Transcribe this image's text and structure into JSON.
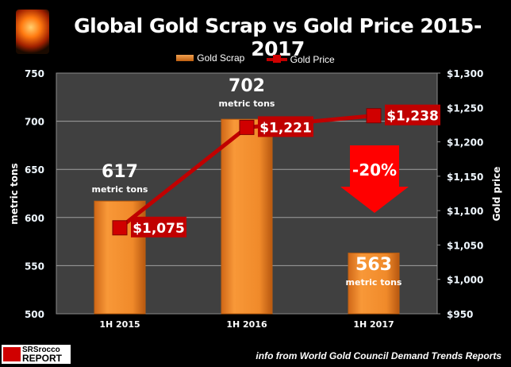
{
  "chart_data": {
    "type": "bar+line",
    "title": "Global Gold Scrap vs Gold Price 2015-2017",
    "categories": [
      "1H 2015",
      "1H 2016",
      "1H 2017"
    ],
    "series": [
      {
        "name": "Gold Scrap",
        "type": "bar",
        "axis": "left",
        "values": [
          617,
          702,
          563
        ],
        "data_labels": [
          "617",
          "702",
          "563"
        ],
        "unit_label": "metric tons",
        "color": "#f08a2a"
      },
      {
        "name": "Gold Price",
        "type": "line",
        "axis": "right",
        "values": [
          1075,
          1221,
          1238
        ],
        "data_labels": [
          "$1,075",
          "$1,221",
          "$1,238"
        ],
        "color": "#c00000"
      }
    ],
    "ylabel": "metric tons",
    "y2label": "Gold  price",
    "ylim": [
      500,
      750
    ],
    "y2lim": [
      950,
      1300
    ],
    "yticks": [
      "500",
      "550",
      "600",
      "650",
      "700",
      "750"
    ],
    "y2ticks": [
      "$950",
      "$1,000",
      "$1,050",
      "$1,100",
      "$1,150",
      "$1,200",
      "$1,250",
      "$1,300"
    ],
    "grid": true,
    "legend": "top-center",
    "annotation": "-20%"
  },
  "source": "info from World Gold Council Demand Trends Reports",
  "brand": {
    "line1": "SRSrocco",
    "line2": "REPORT"
  }
}
